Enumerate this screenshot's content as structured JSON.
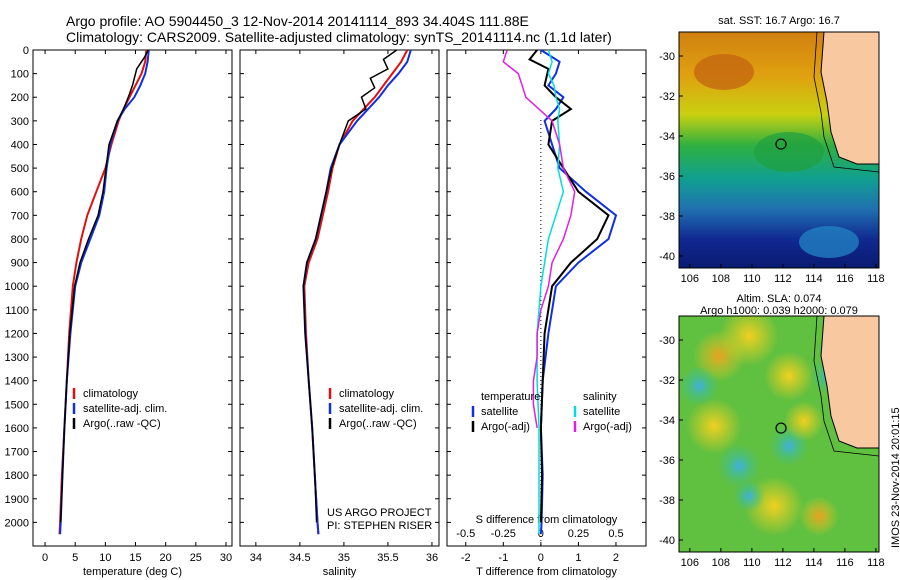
{
  "header": {
    "line1": "Argo profile: AO 5904450_3 12-Nov-2014 20141114_893 34.404S 111.88E",
    "line2": "Climatology: CARS2009. Satellite-adjusted climatology: synTS_20141114.nc (1.1d later)"
  },
  "colors": {
    "climatology": "#e01010",
    "satellite": "#1030e0",
    "argo": "#000000",
    "satellite_s": "#00dddd",
    "argo_s": "#e020e0"
  },
  "chart_data": [
    {
      "type": "line",
      "xlabel": "temperature (deg C)",
      "xticks": [
        "0",
        "5",
        "10",
        "15",
        "20",
        "25",
        "30"
      ],
      "xlim": [
        -2,
        31
      ],
      "ylim": [
        0,
        2100
      ],
      "yticks": [
        "0",
        "100",
        "200",
        "300",
        "400",
        "500",
        "600",
        "700",
        "800",
        "900",
        "1000",
        "1100",
        "1200",
        "1300",
        "1400",
        "1500",
        "1600",
        "1700",
        "1800",
        "1900",
        "2000"
      ],
      "legend": [
        "climatology",
        "satellite-adj. clim.",
        "Argo(..raw -QC)"
      ],
      "series": [
        {
          "name": "climatology",
          "color": "climatology",
          "depth": [
            0,
            50,
            100,
            150,
            200,
            250,
            300,
            400,
            500,
            600,
            700,
            800,
            900,
            1000,
            1200,
            1400,
            1600,
            1800,
            2000,
            2050
          ],
          "x": [
            16.8,
            16.6,
            16.0,
            15.0,
            14.0,
            13.0,
            12.2,
            11.0,
            10.0,
            8.5,
            7.0,
            6.0,
            5.2,
            4.6,
            4.0,
            3.6,
            3.2,
            2.8,
            2.5,
            2.4
          ]
        },
        {
          "name": "satellite-adj. clim.",
          "color": "satellite",
          "depth": [
            0,
            50,
            100,
            150,
            200,
            250,
            300,
            400,
            500,
            600,
            700,
            800,
            900,
            1000,
            1200,
            1400,
            1600,
            1800,
            2000,
            2050
          ],
          "x": [
            17.2,
            17.0,
            16.6,
            15.8,
            14.8,
            13.2,
            12.0,
            10.8,
            10.2,
            9.8,
            9.0,
            7.5,
            6.0,
            5.0,
            4.2,
            3.6,
            3.2,
            2.9,
            2.6,
            2.5
          ]
        },
        {
          "name": "Argo(..raw -QC)",
          "color": "argo",
          "depth": [
            0,
            30,
            80,
            150,
            200,
            250,
            300,
            400,
            500,
            600,
            700,
            800,
            900,
            1000,
            1200,
            1400,
            1600,
            1800,
            2000
          ],
          "x": [
            17.1,
            16.5,
            15.2,
            14.5,
            13.8,
            13.0,
            12.0,
            10.6,
            10.1,
            9.6,
            8.8,
            7.2,
            5.8,
            4.9,
            4.1,
            3.6,
            3.2,
            2.9,
            2.6
          ]
        }
      ]
    },
    {
      "type": "line",
      "xlabel": "salinity",
      "xticks": [
        "34",
        "34.5",
        "35",
        "35.5",
        "36"
      ],
      "xlim": [
        33.82,
        36.08
      ],
      "ylim": [
        0,
        2100
      ],
      "legend": [
        "climatology",
        "satellite-adj. clim.",
        "Argo(..raw -QC)"
      ],
      "annotation": [
        "US ARGO PROJECT",
        "PI: STEPHEN RISER"
      ],
      "series": [
        {
          "name": "climatology",
          "color": "climatology",
          "depth": [
            0,
            50,
            100,
            150,
            200,
            300,
            400,
            500,
            600,
            700,
            800,
            900,
            1000,
            1200,
            1400,
            1600,
            1800,
            2000,
            2050
          ],
          "x": [
            35.72,
            35.65,
            35.55,
            35.45,
            35.35,
            35.1,
            34.95,
            34.87,
            34.82,
            34.76,
            34.7,
            34.6,
            34.55,
            34.57,
            34.6,
            34.64,
            34.67,
            34.7,
            34.71
          ]
        },
        {
          "name": "satellite-adj. clim.",
          "color": "satellite",
          "depth": [
            0,
            50,
            100,
            150,
            200,
            300,
            400,
            500,
            600,
            700,
            800,
            900,
            1000,
            1200,
            1400,
            1600,
            1800,
            2000,
            2050
          ],
          "x": [
            35.76,
            35.72,
            35.62,
            35.5,
            35.4,
            35.15,
            34.95,
            34.85,
            34.8,
            34.74,
            34.68,
            34.58,
            34.54,
            34.56,
            34.6,
            34.64,
            34.67,
            34.7,
            34.71
          ]
        },
        {
          "name": "Argo(..raw -QC)",
          "color": "argo",
          "depth": [
            0,
            40,
            80,
            120,
            160,
            200,
            250,
            300,
            400,
            500,
            600,
            700,
            800,
            900,
            1000,
            1200,
            1400,
            1600,
            1800,
            2000
          ],
          "x": [
            35.6,
            35.45,
            35.5,
            35.3,
            35.35,
            35.2,
            35.25,
            35.05,
            34.95,
            34.86,
            34.8,
            34.74,
            34.68,
            34.58,
            34.54,
            34.56,
            34.6,
            34.64,
            34.67,
            34.69
          ]
        }
      ]
    },
    {
      "type": "line",
      "xlabel": "T difference from climatology",
      "xticks": [
        "-2",
        "-1",
        "0",
        "1",
        "2"
      ],
      "xlim": [
        -2.5,
        2.8
      ],
      "top_axis_label": "S difference from climatology",
      "top_ticks": [
        "-0.5",
        "-0.25",
        "0",
        "0.25",
        "0.5"
      ],
      "ylim": [
        0,
        2100
      ],
      "legend_left_title": "temperature",
      "legend_right_title": "salinity",
      "legend_left": [
        "satellite",
        "Argo(-adj)"
      ],
      "legend_right": [
        "satellite",
        "Argo(-adj)"
      ],
      "series": [
        {
          "name": "satellite",
          "color": "satellite",
          "depth": [
            0,
            50,
            100,
            150,
            200,
            250,
            300,
            400,
            500,
            600,
            700,
            800,
            900,
            1000,
            1200,
            1400,
            1600,
            1800,
            2000,
            2050
          ],
          "x": [
            0.0,
            0.5,
            0.4,
            0.2,
            0.6,
            0.4,
            0.1,
            0.3,
            0.5,
            1.2,
            2.0,
            1.8,
            1.0,
            0.4,
            0.2,
            0.05,
            0.0,
            0.05,
            0.02,
            0.0
          ]
        },
        {
          "name": "Argo(-adj)",
          "color": "argo",
          "depth": [
            0,
            40,
            80,
            150,
            200,
            250,
            300,
            400,
            500,
            600,
            700,
            800,
            900,
            1000,
            1200,
            1400,
            1600,
            1800,
            2000
          ],
          "x": [
            -0.1,
            -0.3,
            0.2,
            0.1,
            0.4,
            0.8,
            0.3,
            0.2,
            0.6,
            1.0,
            1.8,
            1.5,
            0.8,
            0.3,
            0.1,
            0.05,
            0.0,
            0.03,
            0.0
          ]
        },
        {
          "name": "satellite",
          "color": "satellite_s",
          "depth": [
            0,
            50,
            100,
            150,
            200,
            250,
            300,
            400,
            500,
            600,
            700,
            800,
            900,
            1000,
            1200,
            1400,
            1600,
            1800,
            2000,
            2050
          ],
          "x": [
            0.2,
            0.3,
            0.2,
            0.35,
            0.4,
            0.5,
            0.45,
            0.5,
            0.45,
            0.6,
            0.4,
            0.2,
            0.1,
            0.0,
            -0.1,
            -0.1,
            -0.05,
            -0.05,
            -0.05,
            -0.05
          ]
        },
        {
          "name": "Argo(-adj)",
          "color": "argo_s",
          "depth": [
            0,
            50,
            100,
            150,
            200,
            300,
            400,
            500,
            600,
            700,
            800,
            900,
            1000,
            1100,
            1200,
            1300,
            1400,
            1500,
            1600
          ],
          "x": [
            -0.9,
            -1.0,
            -0.6,
            -0.5,
            -0.4,
            0.3,
            0.5,
            0.6,
            0.9,
            0.8,
            0.6,
            0.3,
            0.2,
            0.0,
            -0.1,
            -0.1,
            -0.2,
            -0.2,
            -0.1
          ]
        }
      ]
    },
    {
      "type": "heatmap",
      "title": "sat. SST: 16.7  Argo: 16.7",
      "xticks": [
        "106",
        "108",
        "110",
        "112",
        "114",
        "116",
        "118"
      ],
      "yticks": [
        "-30",
        "-32",
        "-34",
        "-36",
        "-38",
        "-40"
      ],
      "xlim": [
        105.3,
        118.2
      ],
      "ylim": [
        -40.6,
        -28.8
      ],
      "marker": {
        "lon": 111.88,
        "lat": -34.404
      }
    },
    {
      "type": "heatmap",
      "title_line1": "Altim. SLA: 0.074",
      "title_line2": "Argo h1000: 0.039 h2000: 0.079",
      "xticks": [
        "106",
        "108",
        "110",
        "112",
        "114",
        "116",
        "118"
      ],
      "yticks": [
        "-30",
        "-32",
        "-34",
        "-36",
        "-38",
        "-40"
      ],
      "xlim": [
        105.3,
        118.2
      ],
      "ylim": [
        -40.6,
        -28.8
      ],
      "marker": {
        "lon": 111.88,
        "lat": -34.404
      }
    }
  ],
  "side_note": "IMOS 23-Nov-2014 20:01:15"
}
